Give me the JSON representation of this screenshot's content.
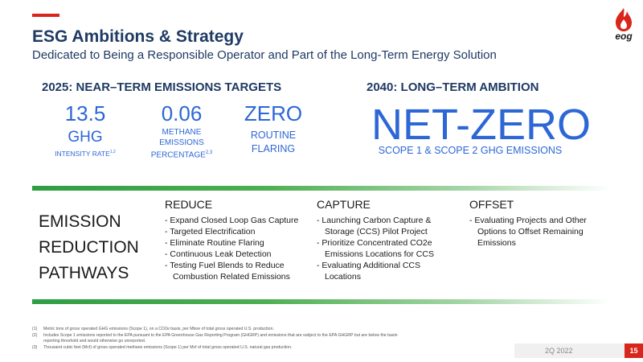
{
  "header": {
    "title": "ESG Ambitions & Strategy",
    "subtitle": "Dedicated to Being a Responsible Operator and Part of the Long-Term Energy Solution",
    "logo_text": "eog",
    "accent_color": "#d9261c",
    "title_color": "#1f3a63"
  },
  "near_term": {
    "heading": "2025: NEAR–TERM EMISSIONS TARGETS",
    "metrics": [
      {
        "value": "13.5",
        "label_line1": "GHG",
        "label_line2": "INTENSITY RATE",
        "footnote": "1,2"
      },
      {
        "value": "0.06",
        "label_line1": "METHANE",
        "label_line2": "EMISSIONS",
        "label_line3": "PERCENTAGE",
        "footnote": "2,3"
      },
      {
        "value": "ZERO",
        "label_line1": "ROUTINE",
        "label_line2": "FLARING"
      }
    ]
  },
  "long_term": {
    "heading": "2040: LONG–TERM AMBITION",
    "value": "NET-ZERO",
    "label": "SCOPE 1 & SCOPE 2 GHG EMISSIONS",
    "value_color": "#2d67d6"
  },
  "pathways": {
    "title_lines": [
      "EMISSION",
      "REDUCTION",
      "PATHWAYS"
    ],
    "columns": [
      {
        "heading": "REDUCE",
        "items": [
          "Expand Closed Loop Gas Capture",
          "Targeted Electrification",
          "Eliminate Routine Flaring",
          "Continuous Leak Detection",
          "Testing Fuel Blends to Reduce Combustion Related Emissions"
        ]
      },
      {
        "heading": "CAPTURE",
        "items": [
          "Launching Carbon Capture & Storage (CCS) Pilot Project",
          "Prioritize Concentrated CO2e Emissions Locations for CCS",
          "Evaluating Additional CCS Locations"
        ]
      },
      {
        "heading": "OFFSET",
        "items": [
          "Evaluating Projects and Other Options to Offset Remaining Emissions"
        ]
      }
    ]
  },
  "footnotes": [
    {
      "num": "(1)",
      "text": "Metric tons of gross operated GHG emissions (Scope 1), on a CO2e basis, per Mboe of total gross operated U.S. production."
    },
    {
      "num": "(2)",
      "text": "Includes Scope 1 emissions reported to the EPA pursuant to the EPA Greenhouse Gas Reporting Program (GHGRP) and emissions that are subject to the EPA GHGRP but are below the basin reporting threshold and would otherwise go unreported."
    },
    {
      "num": "(3)",
      "text": "Thousand cubic feet (Mcf) of gross operated methane emissions (Scope 1) per Mcf of total gross operated U.S. natural gas production."
    }
  ],
  "footer": {
    "period": "2Q 2022",
    "page_number": "15"
  }
}
